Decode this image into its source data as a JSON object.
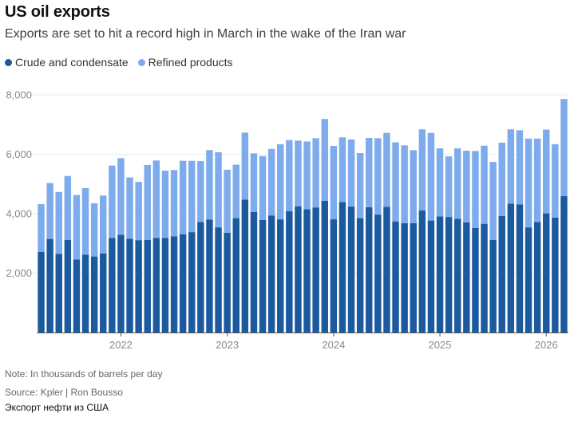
{
  "header": {
    "title": "US oil exports",
    "subtitle": "Exports are set to hit a record high in March in the wake of the Iran war"
  },
  "footer": {
    "note": "Note: In thousands of barrels per day",
    "source": "Source: Kpler | Ron Bousso",
    "caption": "Экспорт нефти из США"
  },
  "colors": {
    "crude": "#1b5a9e",
    "refined": "#7dabeb",
    "grid": "#d9d9d9",
    "axis": "#555555"
  },
  "chart_data": {
    "type": "bar",
    "stacked": true,
    "title": "US oil exports",
    "subtitle": "Exports are set to hit a record high in March in the wake of the Iran war",
    "xlabel": "",
    "ylabel": "",
    "ylim": [
      0,
      8000
    ],
    "yticks": [
      2000,
      4000,
      6000,
      8000
    ],
    "ytick_labels": [
      "2,000",
      "4,000",
      "6,000",
      "8,000"
    ],
    "grid": true,
    "legend_position": "top-left",
    "xtick_labels": [
      {
        "label": "2022",
        "index": 9
      },
      {
        "label": "2023",
        "index": 21
      },
      {
        "label": "2024",
        "index": 33
      },
      {
        "label": "2025",
        "index": 45
      },
      {
        "label": "2026",
        "index": 57
      }
    ],
    "categories": [
      "2021-04",
      "2021-05",
      "2021-06",
      "2021-07",
      "2021-08",
      "2021-09",
      "2021-10",
      "2021-11",
      "2021-12",
      "2022-01",
      "2022-02",
      "2022-03",
      "2022-04",
      "2022-05",
      "2022-06",
      "2022-07",
      "2022-08",
      "2022-09",
      "2022-10",
      "2022-11",
      "2022-12",
      "2023-01",
      "2023-02",
      "2023-03",
      "2023-04",
      "2023-05",
      "2023-06",
      "2023-07",
      "2023-08",
      "2023-09",
      "2023-10",
      "2023-11",
      "2023-12",
      "2024-01",
      "2024-02",
      "2024-03",
      "2024-04",
      "2024-05",
      "2024-06",
      "2024-07",
      "2024-08",
      "2024-09",
      "2024-10",
      "2024-11",
      "2024-12",
      "2025-01",
      "2025-02",
      "2025-03",
      "2025-04",
      "2025-05",
      "2025-06",
      "2025-07",
      "2025-08",
      "2025-09",
      "2025-10",
      "2025-11",
      "2025-12",
      "2026-01",
      "2026-02",
      "2026-03"
    ],
    "series": [
      {
        "name": "Crude and condensate",
        "values": [
          2720,
          3150,
          2650,
          3120,
          2460,
          2620,
          2560,
          2660,
          3180,
          3290,
          3160,
          3110,
          3120,
          3180,
          3180,
          3240,
          3310,
          3380,
          3720,
          3800,
          3540,
          3360,
          3850,
          4470,
          4060,
          3790,
          3940,
          3810,
          4080,
          4250,
          4150,
          4210,
          4430,
          3810,
          4390,
          4240,
          3850,
          4220,
          3970,
          4230,
          3740,
          3680,
          3680,
          4110,
          3770,
          3910,
          3890,
          3830,
          3710,
          3520,
          3660,
          3120,
          3920,
          4340,
          4310,
          3540,
          3720,
          4010,
          3870,
          4590
        ]
      },
      {
        "name": "Refined products",
        "values": [
          1600,
          1880,
          2080,
          2150,
          2170,
          2240,
          1790,
          1950,
          2440,
          2580,
          2060,
          1960,
          2520,
          2610,
          2270,
          2230,
          2470,
          2400,
          2050,
          2340,
          2530,
          2120,
          1800,
          2260,
          1970,
          2150,
          2240,
          2530,
          2400,
          2210,
          2280,
          2330,
          2760,
          2470,
          2180,
          2260,
          2190,
          2330,
          2570,
          2490,
          2660,
          2620,
          2460,
          2730,
          2950,
          2290,
          2040,
          2370,
          2410,
          2590,
          2630,
          2620,
          2470,
          2500,
          2500,
          2990,
          2810,
          2820,
          2470,
          3270
        ]
      }
    ]
  }
}
